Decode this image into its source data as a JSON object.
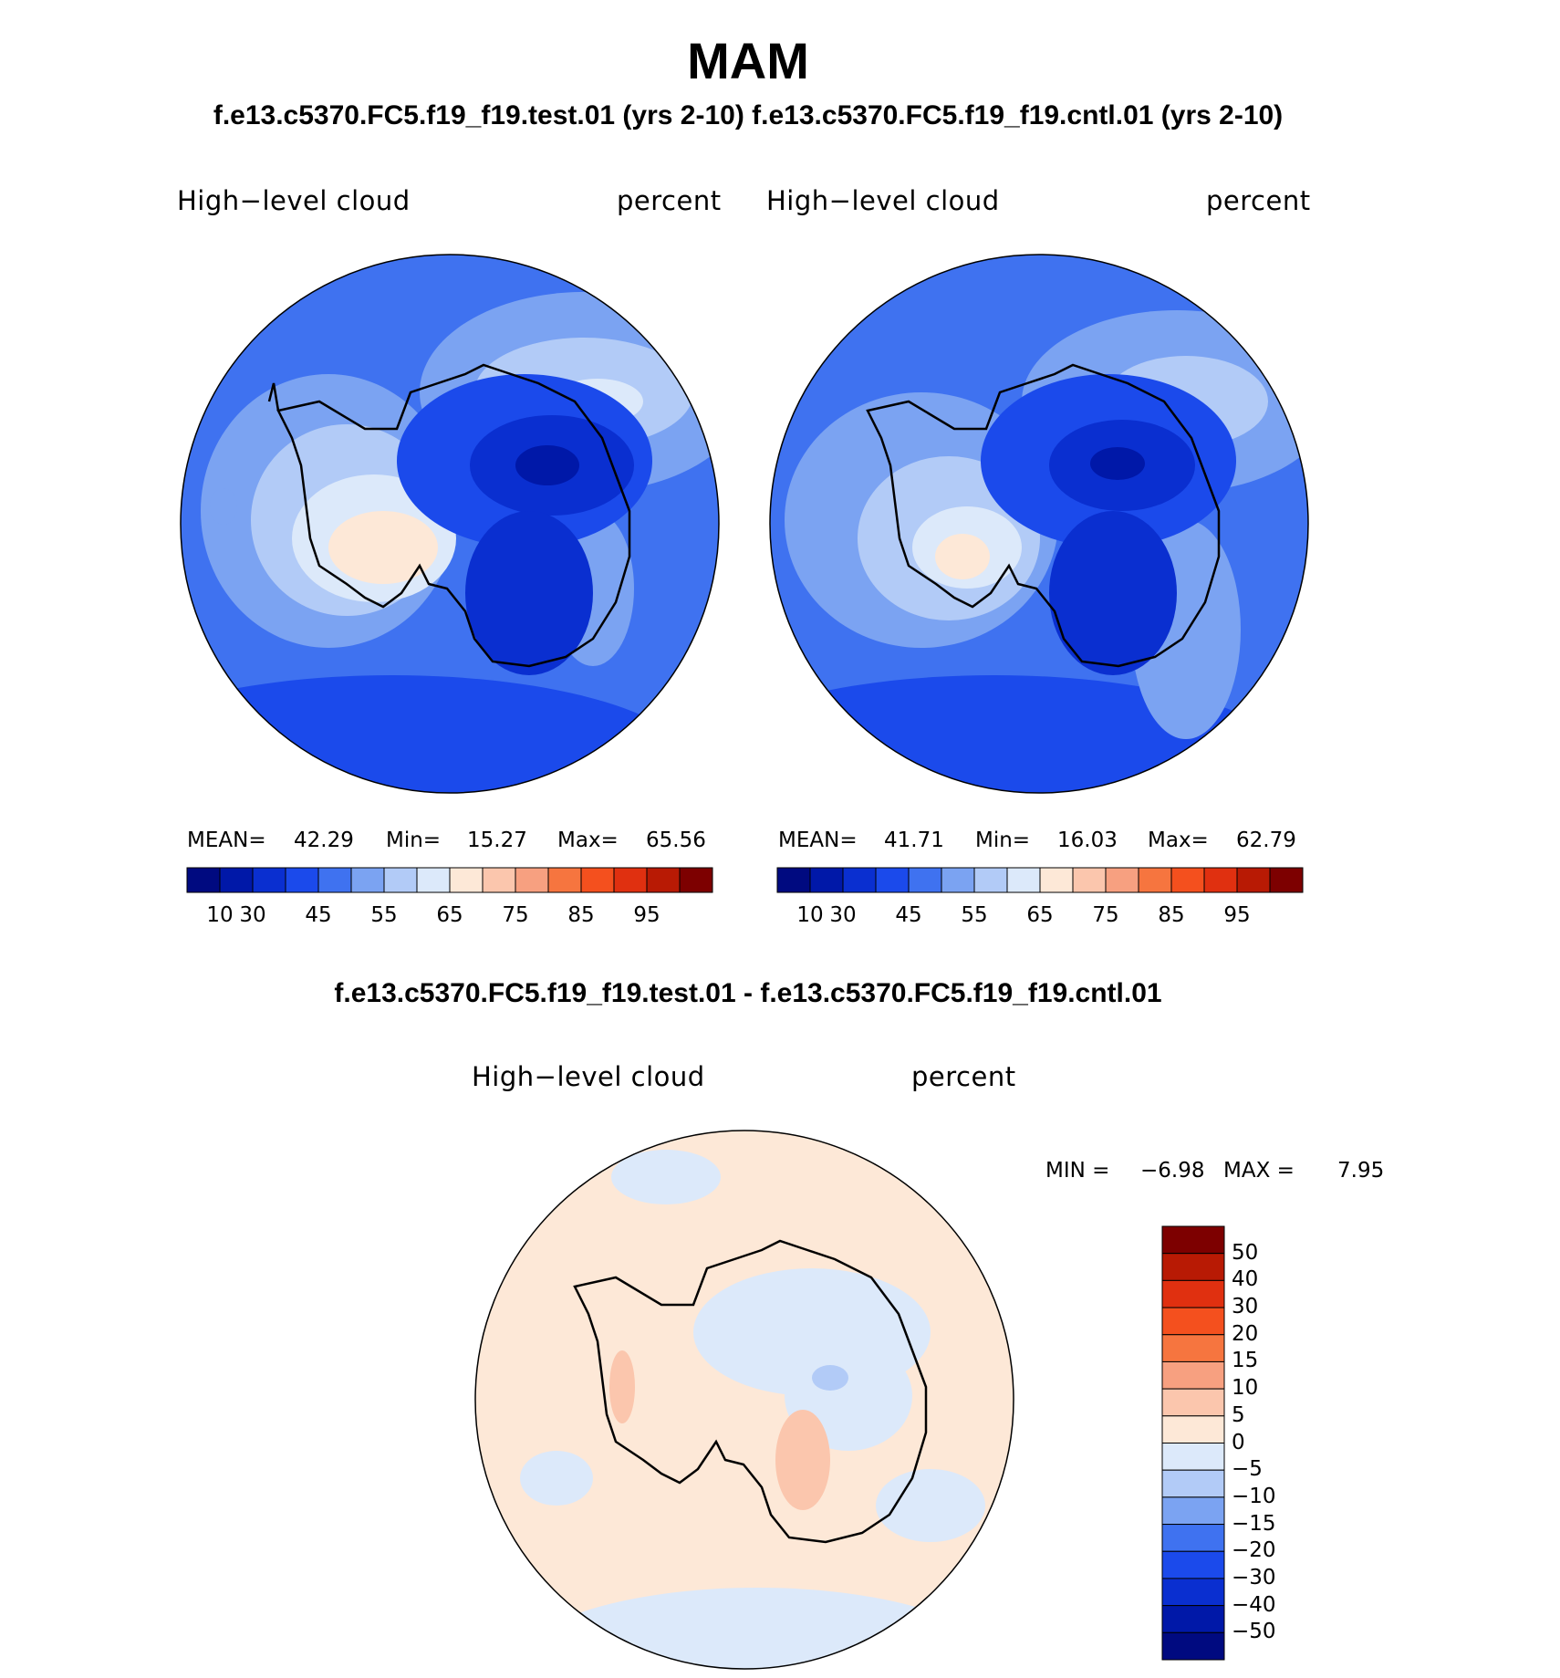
{
  "figure": {
    "title": "MAM",
    "subtitle": "f.e13.c5370.FC5.f19_f19.test.01 (yrs 2-10) f.e13.c5370.FC5.f19_f19.cntl.01 (yrs 2-10)",
    "diff_title": "f.e13.c5370.FC5.f19_f19.test.01 - f.e13.c5370.FC5.f19_f19.cntl.01"
  },
  "panels": {
    "test": {
      "variable": "High−level cloud",
      "units": "percent",
      "mean_label": "MEAN=",
      "mean": "42.29",
      "min_label": "Min=",
      "min": "15.27",
      "max_label": "Max=",
      "max": "65.56"
    },
    "cntl": {
      "variable": "High−level cloud",
      "units": "percent",
      "mean_label": "MEAN=",
      "mean": "41.71",
      "min_label": "Min=",
      "min": "16.03",
      "max_label": "Max=",
      "max": "62.79"
    },
    "diff": {
      "variable": "High−level cloud",
      "units": "percent",
      "min_label": "MIN =",
      "min": "−6.98",
      "max_label": "MAX =",
      "max": "7.95"
    }
  },
  "colorbars": {
    "abs": {
      "colors": [
        "#000a80",
        "#0018a8",
        "#0a2fd0",
        "#1b4aeb",
        "#3f72f0",
        "#7ba3f2",
        "#b2cbf7",
        "#dce9fa",
        "#fde8d7",
        "#fbc6ad",
        "#f7a080",
        "#f6753f",
        "#f4501e",
        "#e03010",
        "#b81a04",
        "#7d0000"
      ],
      "tick_labels": [
        "10",
        "30",
        "45",
        "55",
        "65",
        "75",
        "85",
        "95"
      ]
    },
    "diff": {
      "colors": [
        "#7d0000",
        "#b81a04",
        "#e03010",
        "#f4501e",
        "#f6753f",
        "#f7a080",
        "#fbc6ad",
        "#fde8d7",
        "#dce9fa",
        "#b2cbf7",
        "#7ba3f2",
        "#3f72f0",
        "#1b4aeb",
        "#0a2fd0",
        "#0018a8",
        "#000a80"
      ],
      "tick_labels": [
        "50",
        "40",
        "30",
        "20",
        "15",
        "10",
        "5",
        "0",
        "−5",
        "−10",
        "−15",
        "−20",
        "−30",
        "−40",
        "−50"
      ]
    }
  }
}
